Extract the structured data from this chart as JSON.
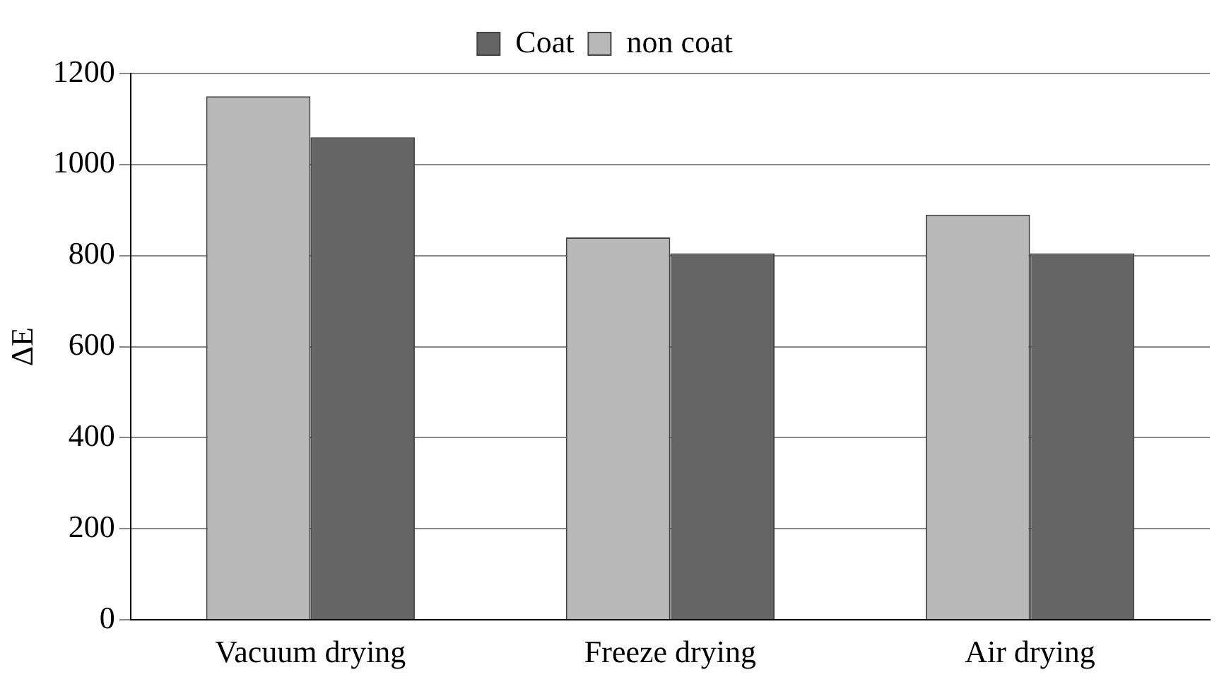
{
  "chart_data": {
    "type": "bar",
    "ylabel": "ΔE",
    "categories": [
      "Vacuum drying",
      "Freeze drying",
      "Air drying"
    ],
    "series": [
      {
        "name": "non coat",
        "color": "#b8b8b8",
        "values": [
          1150,
          840,
          890
        ]
      },
      {
        "name": "Coat",
        "color": "#656565",
        "values": [
          1060,
          805,
          805
        ]
      }
    ],
    "ylim": [
      0,
      1200
    ],
    "yticks": [
      0,
      200,
      400,
      600,
      800,
      1000,
      1200
    ],
    "grid": "y",
    "legend": "top"
  }
}
